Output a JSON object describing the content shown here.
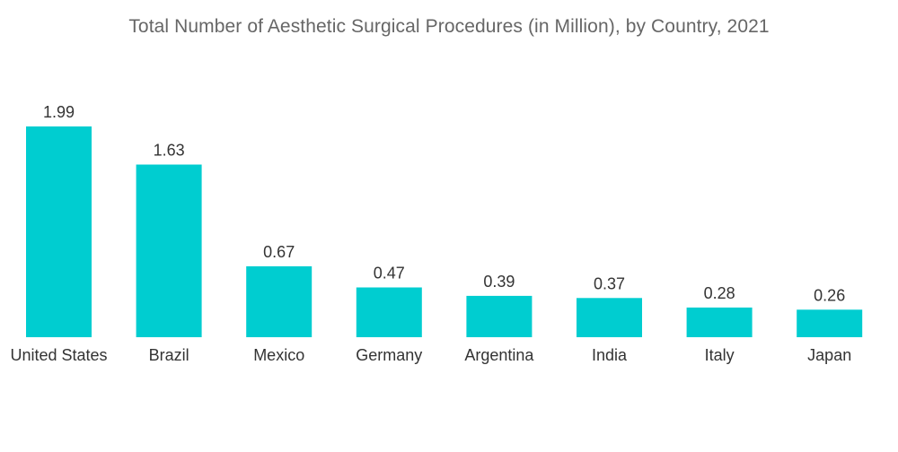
{
  "chart_data": {
    "type": "bar",
    "title": "Total Number of Aesthetic Surgical Procedures (in Million), by Country, 2021",
    "categories": [
      "United States",
      "Brazil",
      "Mexico",
      "Germany",
      "Argentina",
      "India",
      "Italy",
      "Japan"
    ],
    "values": [
      1.99,
      1.63,
      0.67,
      0.47,
      0.39,
      0.37,
      0.28,
      0.26
    ],
    "value_labels": [
      "1.99",
      "1.63",
      "0.67",
      "0.47",
      "0.39",
      "0.37",
      "0.28",
      "0.26"
    ],
    "xlabel": "",
    "ylabel": "",
    "ylim": [
      0,
      1.99
    ],
    "grid": false,
    "legend": "none",
    "bar_color": "#00CDD0"
  }
}
